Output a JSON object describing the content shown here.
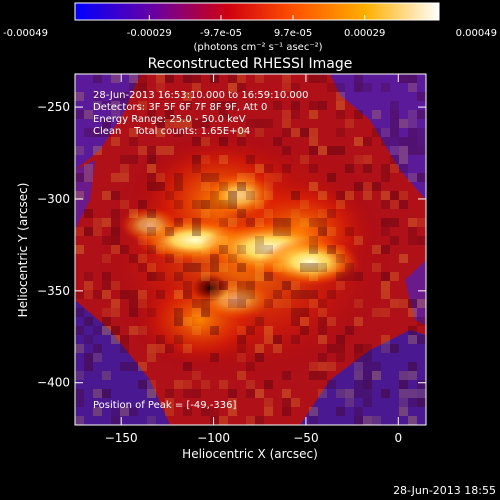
{
  "colorbar": {
    "tick_labels": [
      "-0.00049",
      "-0.00029",
      "-9.7e-05",
      "9.7e-05",
      "0.00029",
      "0.00049"
    ],
    "tick_values": [
      -0.00049,
      -0.00029,
      -9.7e-05,
      9.7e-05,
      0.00029,
      0.00049
    ],
    "range": [
      -0.00049,
      0.00049
    ],
    "unit_label": "(photons cm⁻² s⁻¹ asec⁻²)",
    "colors": [
      "#0000ff",
      "#7a007a",
      "#ff0000",
      "#ff8c00",
      "#ffff80",
      "#ffffff"
    ]
  },
  "chart_data": {
    "type": "heatmap",
    "title": "Reconstructed RHESSI Image",
    "xlabel": "Heliocentric X (arcsec)",
    "ylabel": "Heliocentric Y (arcsec)",
    "xlim": [
      -175,
      15
    ],
    "ylim": [
      -423,
      -232
    ],
    "x_ticks": [
      -150,
      -100,
      -50,
      0
    ],
    "y_ticks": [
      -250,
      -300,
      -350,
      -400
    ],
    "x_tick_labels": [
      "−150",
      "−100",
      "−50",
      "0"
    ],
    "y_tick_labels": [
      "−250",
      "−300",
      "−350",
      "−400"
    ],
    "peak_position": [
      -49,
      -336
    ],
    "annotations": [
      "28-Jun-2013 16:53:10.000 to 16:59:10.000",
      "Detectors: 3F 5F 6F 7F 8F 9F, Att 0",
      "Energy Range: 25.0 - 50.0 keV",
      "Clean    Total counts: 1.65E+04"
    ],
    "peak_label": "Position of Peak = [-49,-336]"
  },
  "footer": {
    "timestamp": "28-Jun-2013 18:55"
  }
}
